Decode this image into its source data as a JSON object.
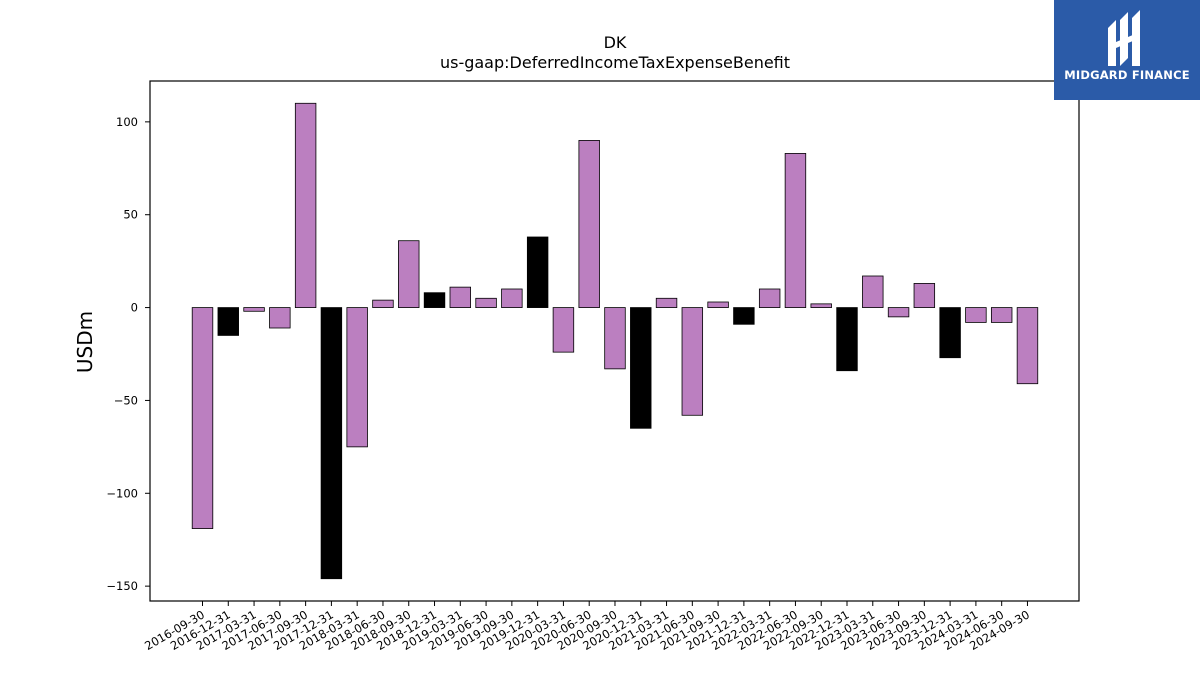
{
  "chart_data": {
    "type": "bar",
    "title": "DK",
    "subtitle": "us-gaap:DeferredIncomeTaxExpenseBenefit",
    "xlabel": "",
    "ylabel": "USDm",
    "ylim": [
      -158,
      122
    ],
    "yticks": [
      100,
      50,
      0,
      -50,
      -100,
      -150
    ],
    "grid": false,
    "categories": [
      "2016-09-30",
      "2016-12-31",
      "2017-03-31",
      "2017-06-30",
      "2017-09-30",
      "2017-12-31",
      "2018-03-31",
      "2018-06-30",
      "2018-09-30",
      "2018-12-31",
      "2019-03-31",
      "2019-06-30",
      "2019-09-30",
      "2019-12-31",
      "2020-03-31",
      "2020-06-30",
      "2020-09-30",
      "2020-12-31",
      "2021-03-31",
      "2021-06-30",
      "2021-09-30",
      "2021-12-31",
      "2022-03-31",
      "2022-06-30",
      "2022-09-30",
      "2022-12-31",
      "2023-03-31",
      "2023-06-30",
      "2023-09-30",
      "2023-12-31",
      "2024-03-31",
      "2024-06-30",
      "2024-09-30"
    ],
    "values": [
      -119,
      -15,
      -2,
      -11,
      110,
      -146,
      -75,
      4,
      36,
      8,
      11,
      5,
      10,
      38,
      -24,
      90,
      -33,
      -65,
      5,
      -58,
      3,
      -9,
      10,
      83,
      2,
      -34,
      17,
      -5,
      13,
      -27,
      -8,
      -8,
      -41
    ],
    "colors": {
      "normal": "#bb7fc0",
      "year_end": "#000000",
      "edge": "#000000"
    },
    "year_end_colored": [
      "2016-12-31",
      "2017-12-31",
      "2018-12-31",
      "2019-12-31",
      "2020-12-31",
      "2021-12-31",
      "2022-12-31",
      "2023-12-31"
    ]
  },
  "logo": {
    "text": "MIDGARD FINANCE",
    "bg": "#2b5ba8"
  }
}
